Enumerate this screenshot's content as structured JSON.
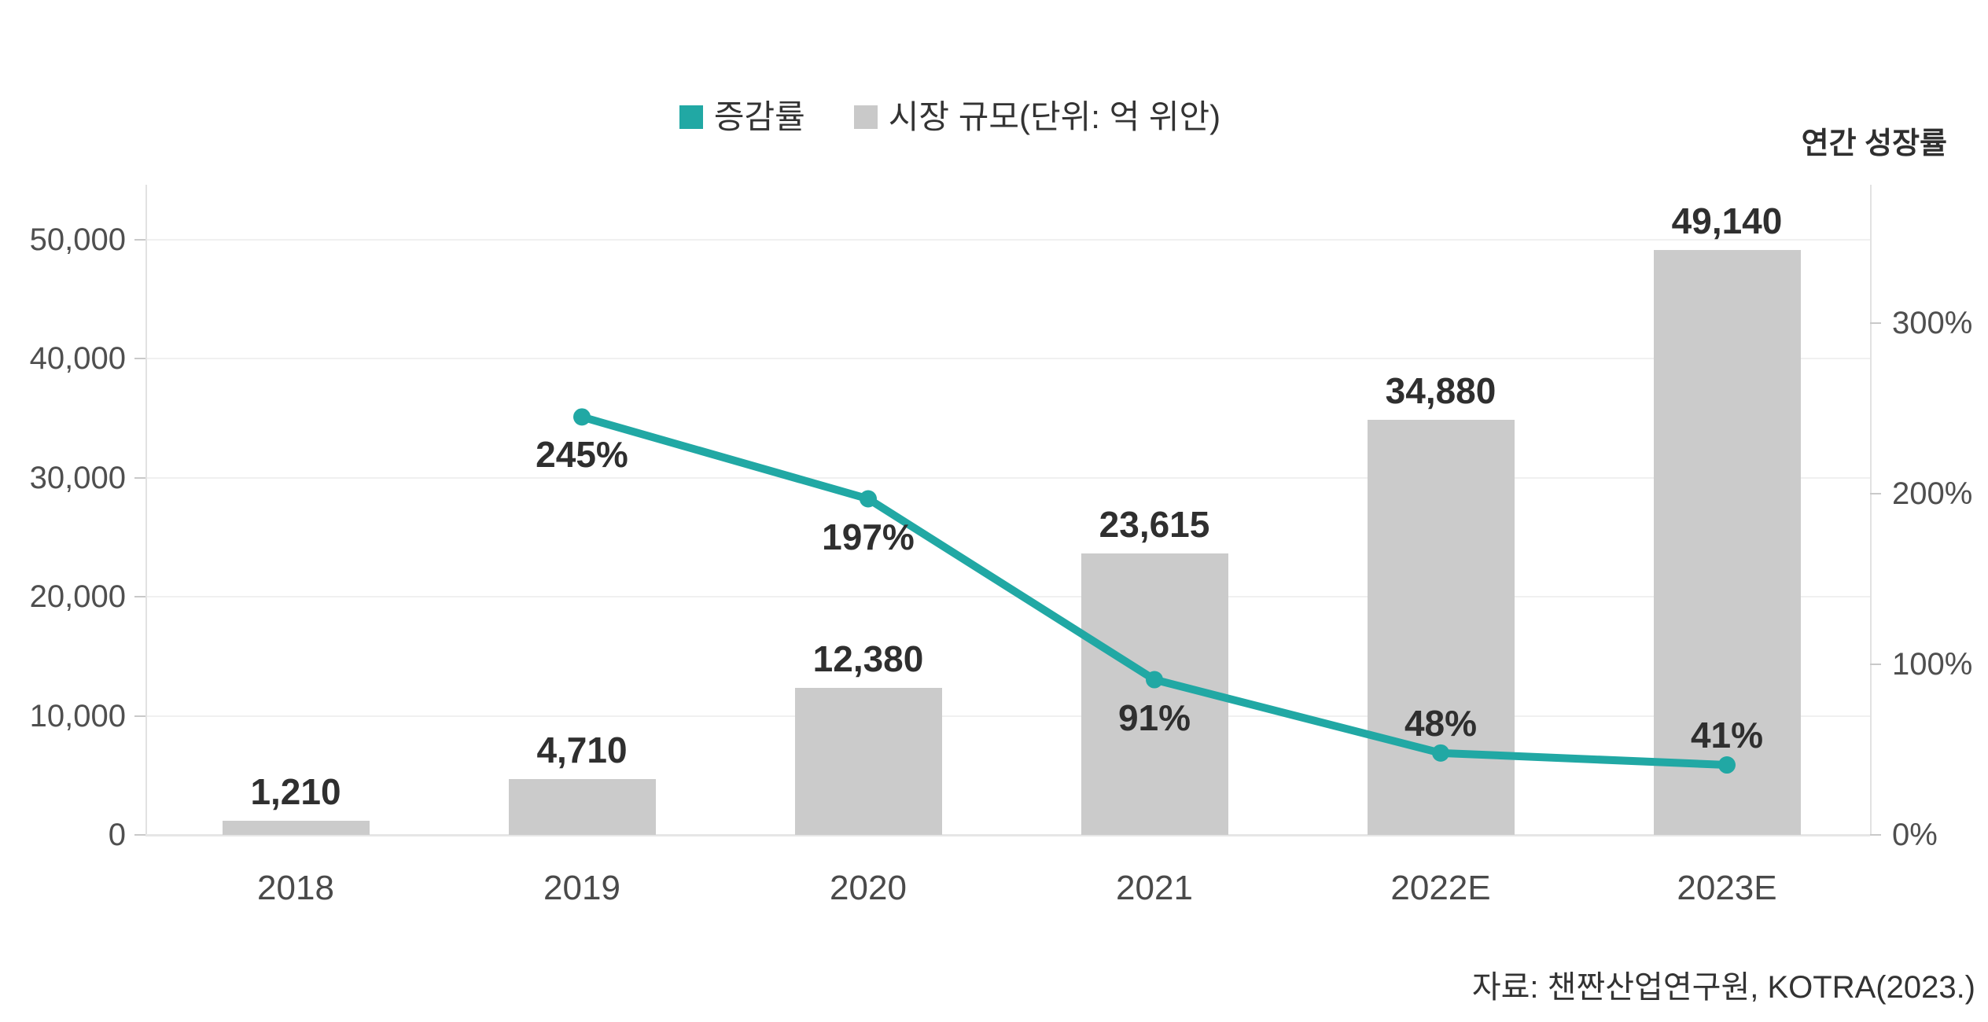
{
  "page": {
    "background": "#ffffff"
  },
  "legend": {
    "items": [
      {
        "label": "증감률",
        "color": "#21A8A4",
        "series": "line"
      },
      {
        "label": "시장 규모(단위: 억 위안)",
        "color": "#C9C9C9",
        "series": "bar"
      }
    ]
  },
  "source": "자료: 챈짠산업연구원, KOTRA(2023.)",
  "chart_data": {
    "type": "bar+line combo",
    "categories": [
      "2018",
      "2019",
      "2020",
      "2021",
      "2022E",
      "2023E"
    ],
    "series": [
      {
        "name": "시장 규모(단위: 억 위안)",
        "type": "bar",
        "axis": "left",
        "color": "#CBCBCB",
        "values": [
          1210,
          4710,
          12380,
          23615,
          34880,
          49140
        ],
        "labels": [
          "1,210",
          "4,710",
          "12,380",
          "23,615",
          "34,880",
          "49,140"
        ]
      },
      {
        "name": "증감률",
        "type": "line",
        "axis": "right",
        "color": "#21A8A4",
        "values": [
          null,
          245,
          197,
          91,
          48,
          41
        ],
        "labels": [
          null,
          "245%",
          "197%",
          "91%",
          "48%",
          "41%"
        ],
        "label_position": [
          null,
          "below",
          "below",
          "below",
          "above",
          "above"
        ]
      }
    ],
    "left_axis": {
      "ticks": [
        "0",
        "10,000",
        "20,000",
        "30,000",
        "40,000",
        "50,000"
      ],
      "tick_values": [
        0,
        10000,
        20000,
        30000,
        40000,
        50000
      ],
      "range": [
        0,
        54600
      ]
    },
    "right_axis": {
      "title": "연간 성장률",
      "ticks": [
        "0%",
        "100%",
        "200%",
        "300%"
      ],
      "tick_values": [
        0,
        100,
        200,
        300
      ],
      "range": [
        0,
        381
      ]
    },
    "grid": true,
    "legend_position": "top-center",
    "title": "",
    "xlabel": "",
    "ylabel": ""
  }
}
